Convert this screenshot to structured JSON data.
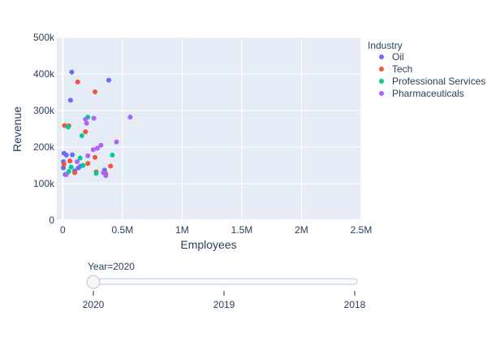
{
  "chart_data": {
    "type": "scatter",
    "xlabel": "Employees",
    "ylabel": "Revenue",
    "xlim": [
      -50000,
      2500000
    ],
    "ylim": [
      0,
      500000
    ],
    "x_ticks": [
      0,
      500000,
      1000000,
      1500000,
      2000000,
      2500000
    ],
    "x_tick_labels": [
      "0",
      "0.5M",
      "1M",
      "1.5M",
      "2M",
      "2.5M"
    ],
    "y_ticks": [
      0,
      100000,
      200000,
      300000,
      400000,
      500000
    ],
    "y_tick_labels": [
      "0",
      "100k",
      "200k",
      "300k",
      "400k",
      "500k"
    ],
    "grid": true,
    "legend": {
      "title": "Industry",
      "placement": "top-right"
    },
    "series": [
      {
        "name": "Oil",
        "color": "#636efa",
        "points": [
          [
            75000,
            405000
          ],
          [
            385000,
            383000
          ],
          [
            65000,
            328000
          ],
          [
            10000,
            183000
          ],
          [
            30000,
            178000
          ],
          [
            80000,
            179000
          ],
          [
            150000,
            148000
          ],
          [
            5000,
            160000
          ],
          [
            5000,
            143000
          ],
          [
            130000,
            143000
          ],
          [
            350000,
            137000
          ],
          [
            20000,
            125000
          ],
          [
            100000,
            135000
          ]
        ]
      },
      {
        "name": "Tech",
        "color": "#ef553b",
        "points": [
          [
            270000,
            351000
          ],
          [
            125000,
            378000
          ],
          [
            15000,
            259000
          ],
          [
            50000,
            258000
          ],
          [
            190000,
            242000
          ],
          [
            270000,
            172000
          ],
          [
            210000,
            155000
          ],
          [
            60000,
            162000
          ],
          [
            10000,
            153000
          ],
          [
            400000,
            148000
          ],
          [
            100000,
            130000
          ],
          [
            360000,
            127000
          ],
          [
            280000,
            132000
          ]
        ]
      },
      {
        "name": "Professional Services",
        "color": "#00cc96",
        "points": [
          [
            45000,
            255000
          ],
          [
            210000,
            282000
          ],
          [
            160000,
            231000
          ],
          [
            415000,
            178000
          ],
          [
            145000,
            170000
          ],
          [
            170000,
            150000
          ],
          [
            70000,
            145000
          ],
          [
            50000,
            133000
          ],
          [
            280000,
            128000
          ]
        ]
      },
      {
        "name": "Pharmaceuticals",
        "color": "#ab63fa",
        "points": [
          [
            565000,
            282000
          ],
          [
            260000,
            279000
          ],
          [
            190000,
            276000
          ],
          [
            200000,
            265000
          ],
          [
            450000,
            214000
          ],
          [
            320000,
            205000
          ],
          [
            290000,
            197000
          ],
          [
            255000,
            193000
          ],
          [
            210000,
            176000
          ],
          [
            120000,
            160000
          ],
          [
            340000,
            130000
          ],
          [
            360000,
            122000
          ],
          [
            30000,
            125000
          ]
        ]
      }
    ]
  },
  "slider": {
    "current_label": "Year=2020",
    "steps": [
      "2020",
      "2019",
      "2018"
    ],
    "active_index": 0
  }
}
